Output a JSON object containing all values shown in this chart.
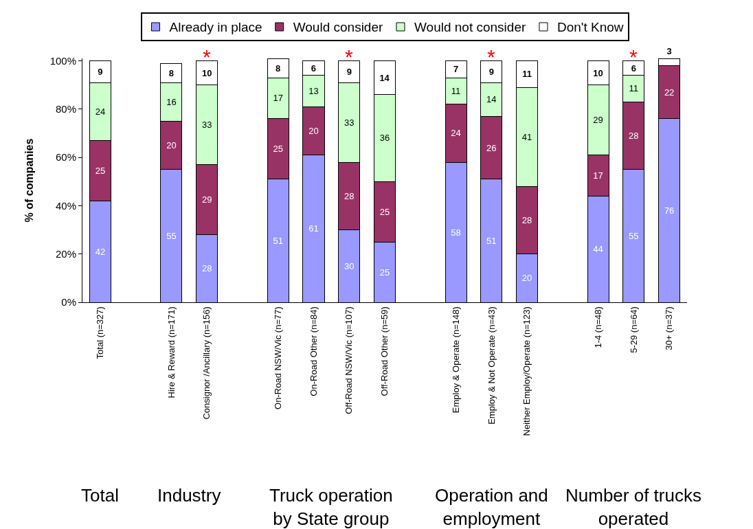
{
  "chart_data": {
    "type": "bar",
    "stacked": true,
    "data_labels": true,
    "legend": "top",
    "grid": false,
    "ylabel": "% of companies",
    "categories": [
      "Total (n=327)",
      null,
      "Hire & Reward (n=171)",
      "Consignor /Ancillary (n=156)",
      null,
      "On-Road NSW/Vic (n=77)",
      "On-Road Other (n=84)",
      "Off-Road NSW/Vic (n=107)",
      "Off-Road Other (n=59)",
      null,
      "Employ & Operate (n=148)",
      "Employ & Not Operate (n=43)",
      "Neither Employ/Operate (n=123)",
      null,
      "1-4 (n=48)",
      "5-29 (n=64)",
      "30+ (n=37)"
    ],
    "series": [
      {
        "name": "Already in place",
        "color": "#9999ff",
        "values": [
          42,
          null,
          55,
          28,
          null,
          51,
          61,
          30,
          25,
          null,
          58,
          51,
          20,
          null,
          44,
          55,
          76
        ]
      },
      {
        "name": "Would consider",
        "color": "#993366",
        "values": [
          25,
          null,
          20,
          29,
          null,
          25,
          20,
          28,
          25,
          null,
          24,
          26,
          28,
          null,
          17,
          28,
          22
        ]
      },
      {
        "name": "Would not consider",
        "color": "#ccffcc",
        "values": [
          24,
          null,
          16,
          33,
          null,
          17,
          13,
          33,
          36,
          null,
          11,
          14,
          41,
          null,
          29,
          11,
          null
        ]
      },
      {
        "name": "Don't Know",
        "color": "#ffffff",
        "values": [
          9,
          null,
          8,
          10,
          null,
          8,
          6,
          9,
          14,
          null,
          7,
          9,
          11,
          null,
          10,
          6,
          3
        ]
      }
    ],
    "ylim": [
      0,
      101
    ],
    "yticks": [
      {
        "value": 0,
        "label": "0%"
      },
      {
        "value": 20,
        "label": "20%"
      },
      {
        "value": 40,
        "label": "40%"
      },
      {
        "value": 60,
        "label": "60%"
      },
      {
        "value": 80,
        "label": "80%"
      },
      {
        "value": 100,
        "label": "100%"
      }
    ],
    "annotations": [
      {
        "text": "*",
        "x": "Consignor /Ancillary (n=156)",
        "y": 100
      },
      {
        "text": "*",
        "x": "Off-Road NSW/Vic (n=107)",
        "y": 100
      },
      {
        "text": "*",
        "x": "Employ & Not Operate (n=43)",
        "y": 100
      },
      {
        "text": "*",
        "x": "5-29 (n=64)",
        "y": 100
      },
      "Total",
      "Industry",
      "Truck operation by State group",
      "Operation and employment",
      "Number of trucks operated"
    ]
  }
}
